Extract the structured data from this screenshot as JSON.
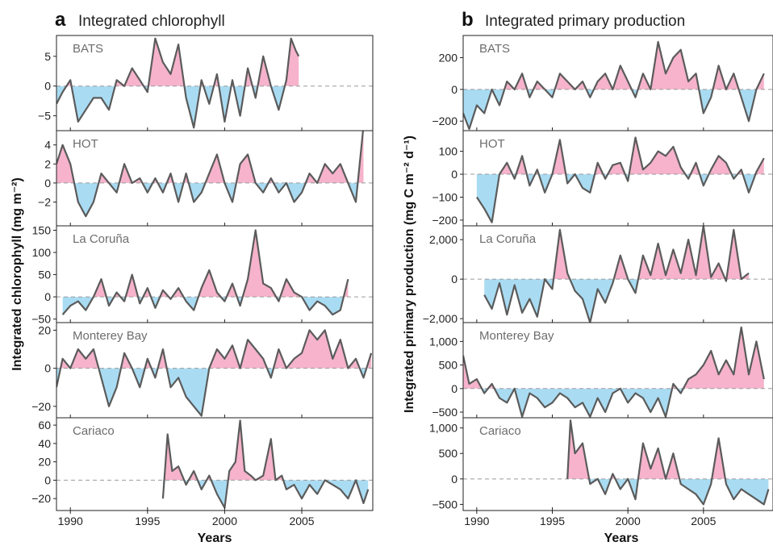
{
  "colors": {
    "positive_fill": "#f6b3cb",
    "negative_fill": "#a9dcf3",
    "line": "#5b5b5b",
    "frame": "#222222",
    "zero_line": "#9a9a9a"
  },
  "chart_data": [
    {
      "type": "area",
      "panel_letter": "a",
      "title": "Integrated chlorophyll",
      "ylabel": "Integrated chlorophyll (mg m⁻²)",
      "xlabel": "Years",
      "xlim": [
        1989.1,
        2009.6
      ],
      "x_ticks": [
        1990,
        1995,
        2000,
        2005
      ],
      "fill": "positive anomalies pink, negative anomalies blue",
      "subplots": [
        {
          "site": "BATS",
          "ylim": [
            -7.5,
            8.5
          ],
          "y_ticks": [
            -5,
            0,
            5
          ],
          "tick_labels": [
            "−5",
            "0",
            "5"
          ],
          "x": [
            1989.1,
            1989.5,
            1990,
            1990.5,
            1991,
            1991.5,
            1992,
            1992.5,
            1993,
            1993.5,
            1994,
            1994.5,
            1995,
            1995.5,
            1996,
            1996.5,
            1997,
            1997.5,
            1998,
            1998.5,
            1999,
            1999.5,
            2000,
            2000.5,
            2001,
            2001.5,
            2002,
            2002.5,
            2003,
            2003.5,
            2004,
            2004.3,
            2004.6,
            2004.8
          ],
          "values": [
            -3,
            -1,
            1,
            -6,
            -4,
            -2,
            -2,
            -4,
            1,
            0,
            3,
            1,
            -1,
            8,
            4,
            2,
            7,
            -2,
            -7,
            1,
            -3,
            2,
            -6,
            1,
            -5,
            3,
            -2,
            5,
            0,
            -4,
            1,
            8,
            6,
            5
          ]
        },
        {
          "site": "HOT",
          "ylim": [
            -4.5,
            5.5
          ],
          "y_ticks": [
            -2,
            0,
            2,
            4
          ],
          "tick_labels": [
            "−2",
            "0",
            "2",
            "4"
          ],
          "x": [
            1989.1,
            1989.5,
            1990,
            1990.5,
            1991,
            1991.5,
            1992,
            1992.5,
            1993,
            1993.5,
            1994,
            1994.5,
            1995,
            1995.5,
            1996,
            1996.5,
            1997,
            1997.5,
            1998,
            1998.5,
            1999,
            1999.5,
            2000,
            2000.5,
            2001,
            2001.5,
            2002,
            2002.5,
            2003,
            2003.5,
            2004,
            2004.5,
            2005,
            2005.5,
            2006,
            2006.5,
            2007,
            2007.5,
            2008,
            2008.5,
            2009
          ],
          "values": [
            2,
            4,
            2,
            -2,
            -3.5,
            -2,
            1,
            0,
            -1,
            2,
            0,
            0.5,
            -1,
            0.5,
            -1,
            1,
            -2,
            1,
            -2,
            -1,
            1,
            3,
            0,
            -2,
            2,
            3,
            0,
            -1,
            0.5,
            -1,
            0,
            -2,
            -1,
            1,
            0,
            2,
            1,
            2,
            0,
            -2,
            6
          ]
        },
        {
          "site": "La Coruña",
          "ylim": [
            -58,
            160
          ],
          "y_ticks": [
            -50,
            0,
            50,
            100,
            150
          ],
          "tick_labels": [
            "−50",
            "0",
            "50",
            "100",
            "150"
          ],
          "x": [
            1989.5,
            1990,
            1990.5,
            1991,
            1991.5,
            1992,
            1992.5,
            1993,
            1993.5,
            1994,
            1994.5,
            1995,
            1995.5,
            1996,
            1996.5,
            1997,
            1997.5,
            1998,
            1998.5,
            1999,
            1999.5,
            2000,
            2000.5,
            2001,
            2001.5,
            2002,
            2002.5,
            2003,
            2003.5,
            2004,
            2004.5,
            2005,
            2005.5,
            2006,
            2006.5,
            2007,
            2007.5,
            2008
          ],
          "values": [
            -40,
            -20,
            -10,
            -30,
            0,
            40,
            -20,
            10,
            -10,
            50,
            -15,
            20,
            -25,
            15,
            -5,
            20,
            -10,
            -30,
            20,
            60,
            10,
            -10,
            30,
            -20,
            40,
            150,
            30,
            20,
            -10,
            40,
            10,
            0,
            -30,
            -10,
            -20,
            -40,
            -30,
            40
          ]
        },
        {
          "site": "Monterey Bay",
          "ylim": [
            -26,
            24
          ],
          "y_ticks": [
            -20,
            0,
            20
          ],
          "tick_labels": [
            "−20",
            "0",
            "20"
          ],
          "x": [
            1989.1,
            1989.5,
            1990,
            1990.5,
            1991,
            1991.5,
            1992,
            1992.5,
            1993,
            1993.5,
            1994,
            1994.5,
            1995,
            1995.5,
            1996,
            1996.5,
            1997,
            1997.5,
            1998,
            1998.5,
            1999,
            1999.5,
            2000,
            2000.5,
            2001,
            2001.5,
            2002,
            2002.5,
            2003,
            2003.5,
            2004,
            2004.5,
            2005,
            2005.5,
            2006,
            2006.5,
            2007,
            2007.5,
            2008,
            2008.5,
            2009,
            2009.5
          ],
          "values": [
            -10,
            5,
            0,
            10,
            5,
            10,
            -5,
            -20,
            -10,
            8,
            0,
            -10,
            5,
            -5,
            10,
            -10,
            -5,
            -15,
            -20,
            -25,
            0,
            10,
            5,
            12,
            0,
            15,
            10,
            5,
            -5,
            10,
            0,
            5,
            8,
            20,
            15,
            20,
            5,
            15,
            0,
            5,
            -5,
            8
          ]
        },
        {
          "site": "Cariaco",
          "ylim": [
            -33,
            68
          ],
          "y_ticks": [
            -20,
            0,
            20,
            40,
            60
          ],
          "tick_labels": [
            "−20",
            "0",
            "20",
            "40",
            "60"
          ],
          "x": [
            1996.0,
            1996.3,
            1996.6,
            1997,
            1997.5,
            1998,
            1998.5,
            1999,
            1999.5,
            2000,
            2000.3,
            2000.7,
            2001,
            2001.3,
            2001.7,
            2002,
            2002.5,
            2003,
            2003.3,
            2003.7,
            2004,
            2004.5,
            2005,
            2005.5,
            2006,
            2006.5,
            2007,
            2007.5,
            2008,
            2008.5,
            2009,
            2009.3
          ],
          "values": [
            -20,
            50,
            10,
            15,
            -5,
            10,
            -10,
            5,
            -15,
            -30,
            10,
            20,
            65,
            10,
            5,
            0,
            5,
            45,
            0,
            5,
            -10,
            -5,
            -20,
            -5,
            -15,
            0,
            -5,
            -10,
            -20,
            0,
            -25,
            -10
          ]
        }
      ]
    },
    {
      "type": "area",
      "panel_letter": "b",
      "title": "Integrated primary production",
      "ylabel": "Integrated primary production (mg C m⁻² d⁻¹)",
      "xlabel": "Years",
      "xlim": [
        1989.1,
        2009.6
      ],
      "x_ticks": [
        1990,
        1995,
        2000,
        2005
      ],
      "fill": "positive anomalies pink, negative anomalies blue",
      "subplots": [
        {
          "site": "BATS",
          "ylim": [
            -260,
            340
          ],
          "y_ticks": [
            -200,
            0,
            200
          ],
          "tick_labels": [
            "−200",
            "0",
            "200"
          ],
          "x": [
            1989.1,
            1989.5,
            1990,
            1990.5,
            1991,
            1991.5,
            1992,
            1992.5,
            1993,
            1993.5,
            1994,
            1994.5,
            1995,
            1995.5,
            1996,
            1996.5,
            1997,
            1997.5,
            1998,
            1998.5,
            1999,
            1999.5,
            2000,
            2000.5,
            2001,
            2001.5,
            2002,
            2002.5,
            2003,
            2003.5,
            2004,
            2004.5,
            2005,
            2005.5,
            2006,
            2006.5,
            2007,
            2007.5,
            2008,
            2008.5,
            2009
          ],
          "values": [
            -150,
            -250,
            -100,
            -150,
            0,
            -100,
            50,
            0,
            100,
            -50,
            50,
            0,
            -50,
            100,
            50,
            0,
            50,
            -50,
            50,
            100,
            0,
            150,
            50,
            -50,
            100,
            0,
            300,
            100,
            200,
            250,
            50,
            100,
            -150,
            -50,
            150,
            0,
            100,
            -50,
            -200,
            0,
            100
          ]
        },
        {
          "site": "HOT",
          "ylim": [
            -225,
            190
          ],
          "y_ticks": [
            -200,
            -100,
            0,
            100
          ],
          "tick_labels": [
            "−200",
            "−100",
            "0",
            "100"
          ],
          "x": [
            1990,
            1990.5,
            1991,
            1991.5,
            1992,
            1992.5,
            1993,
            1993.5,
            1994,
            1994.5,
            1995,
            1995.5,
            1996,
            1996.5,
            1997,
            1997.5,
            1998,
            1998.5,
            1999,
            1999.5,
            2000,
            2000.5,
            2001,
            2001.5,
            2002,
            2002.5,
            2003,
            2003.5,
            2004,
            2004.5,
            2005,
            2005.5,
            2006,
            2006.5,
            2007,
            2007.5,
            2008,
            2008.5,
            2009
          ],
          "values": [
            -100,
            -150,
            -210,
            0,
            50,
            -20,
            80,
            -50,
            20,
            -80,
            0,
            150,
            -40,
            0,
            -60,
            -80,
            50,
            -20,
            40,
            50,
            -30,
            160,
            20,
            50,
            100,
            80,
            120,
            30,
            -20,
            50,
            -50,
            20,
            80,
            50,
            -20,
            20,
            -80,
            10,
            70
          ]
        },
        {
          "site": "La Coruña",
          "ylim": [
            -2200,
            2700
          ],
          "y_ticks": [
            -2000,
            0,
            2000
          ],
          "tick_labels": [
            "−2,000",
            "0",
            "2,000"
          ],
          "x": [
            1990.5,
            1991,
            1991.5,
            1992,
            1992.5,
            1993,
            1993.5,
            1994,
            1994.5,
            1995,
            1995.5,
            1996,
            1996.5,
            1997,
            1997.5,
            1998,
            1998.5,
            1999,
            1999.5,
            2000,
            2000.5,
            2001,
            2001.5,
            2002,
            2002.5,
            2003,
            2003.5,
            2004,
            2004.5,
            2005,
            2005.5,
            2006,
            2006.5,
            2007,
            2007.5,
            2008
          ],
          "values": [
            -800,
            -1500,
            -200,
            -1800,
            -300,
            -1700,
            -1000,
            -1900,
            0,
            -500,
            2500,
            300,
            -600,
            -1000,
            -2200,
            -500,
            -1200,
            -200,
            1200,
            0,
            -700,
            1200,
            200,
            1800,
            200,
            1500,
            300,
            2000,
            200,
            2700,
            100,
            800,
            -100,
            2500,
            0,
            300
          ]
        },
        {
          "site": "Monterey Bay",
          "ylim": [
            -620,
            1400
          ],
          "y_ticks": [
            -500,
            0,
            500,
            1000
          ],
          "tick_labels": [
            "−500",
            "0",
            "500",
            "1,000"
          ],
          "x": [
            1989.1,
            1989.5,
            1990,
            1990.5,
            1991,
            1991.5,
            1992,
            1992.5,
            1993,
            1993.5,
            1994,
            1994.5,
            1995,
            1995.5,
            1996,
            1996.5,
            1997,
            1997.5,
            1998,
            1998.5,
            1999,
            1999.5,
            2000,
            2000.5,
            2001,
            2001.5,
            2002,
            2002.5,
            2003,
            2003.5,
            2004,
            2004.5,
            2005,
            2005.5,
            2006,
            2006.5,
            2007,
            2007.5,
            2008,
            2008.5,
            2009
          ],
          "values": [
            700,
            100,
            200,
            -100,
            100,
            -200,
            -300,
            0,
            -600,
            -100,
            -200,
            -400,
            -300,
            -100,
            -200,
            -400,
            -300,
            -600,
            -200,
            -500,
            -100,
            0,
            -300,
            -100,
            -200,
            -500,
            -200,
            -600,
            100,
            -100,
            200,
            300,
            500,
            800,
            300,
            600,
            300,
            1300,
            300,
            1000,
            200
          ]
        },
        {
          "site": "Cariaco",
          "ylim": [
            -620,
            1200
          ],
          "y_ticks": [
            -500,
            0,
            500,
            1000
          ],
          "tick_labels": [
            "−500",
            "0",
            "500",
            "1,000"
          ],
          "x": [
            1996.0,
            1996.2,
            1996.5,
            1997,
            1997.5,
            1998,
            1998.5,
            1999,
            1999.5,
            2000,
            2000.5,
            2001,
            2001.5,
            2002,
            2002.5,
            2003,
            2003.5,
            2004,
            2004.5,
            2005,
            2005.5,
            2006,
            2006.5,
            2007,
            2007.5,
            2008,
            2008.5,
            2009,
            2009.3
          ],
          "values": [
            0,
            1150,
            500,
            700,
            -100,
            0,
            -300,
            100,
            -200,
            0,
            -400,
            700,
            200,
            600,
            0,
            500,
            -100,
            -200,
            -300,
            -500,
            -100,
            800,
            -100,
            -400,
            -200,
            -300,
            -400,
            -500,
            -200
          ]
        }
      ]
    }
  ]
}
